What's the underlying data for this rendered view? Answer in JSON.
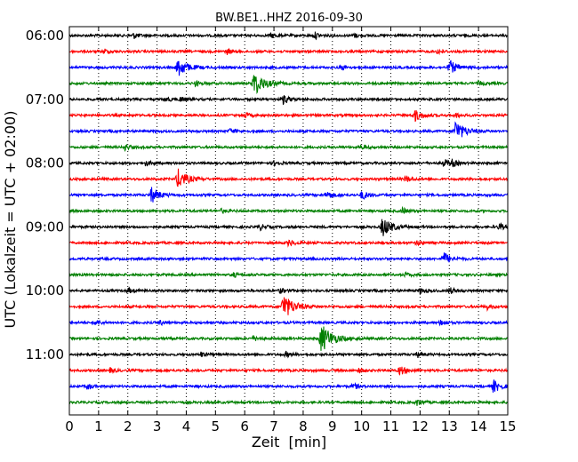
{
  "chart_data": {
    "type": "line",
    "title": "BW.BE1..HHZ 2016-09-30",
    "xlabel": "Zeit  [min]",
    "ylabel": "UTC (Lokalzeit = UTC + 02:00)",
    "xlim": [
      0,
      15
    ],
    "x_ticks": [
      "0",
      "1",
      "2",
      "3",
      "4",
      "5",
      "6",
      "7",
      "8",
      "9",
      "10",
      "11",
      "12",
      "13",
      "14",
      "15"
    ],
    "y_ticks": [
      {
        "label": "06:00",
        "row": 0
      },
      {
        "label": "07:00",
        "row": 4
      },
      {
        "label": "08:00",
        "row": 8
      },
      {
        "label": "09:00",
        "row": 12
      },
      {
        "label": "10:00",
        "row": 16
      },
      {
        "label": "11:00",
        "row": 20
      }
    ],
    "grid": "vertical dotted",
    "colors": [
      "#000000",
      "#ff0000",
      "#0000ff",
      "#008000"
    ],
    "trace_minutes": 15,
    "series": [
      {
        "start": "06:00",
        "events": [
          {
            "t": 2.2,
            "amp": 0.35
          },
          {
            "t": 6.9,
            "amp": 0.3
          },
          {
            "t": 8.4,
            "amp": 0.4
          },
          {
            "t": 9.7,
            "amp": 0.3
          },
          {
            "t": 15.0,
            "amp": 0.35
          }
        ]
      },
      {
        "start": "06:15",
        "events": [
          {
            "t": 1.2,
            "amp": 0.3
          },
          {
            "t": 5.4,
            "amp": 0.3
          },
          {
            "t": 12.6,
            "amp": 0.3
          }
        ]
      },
      {
        "start": "06:30",
        "events": [
          {
            "t": 3.7,
            "amp": 1.3
          },
          {
            "t": 9.3,
            "amp": 0.3
          },
          {
            "t": 13.0,
            "amp": 0.9
          }
        ]
      },
      {
        "start": "06:45",
        "events": [
          {
            "t": 6.3,
            "amp": 1.6
          },
          {
            "t": 4.3,
            "amp": 0.3
          },
          {
            "t": 14.0,
            "amp": 0.25
          }
        ]
      },
      {
        "start": "07:00",
        "events": [
          {
            "t": 3.3,
            "amp": 0.3
          },
          {
            "t": 3.8,
            "amp": 0.3
          },
          {
            "t": 7.3,
            "amp": 0.6
          }
        ]
      },
      {
        "start": "07:15",
        "events": [
          {
            "t": 6.0,
            "amp": 0.3
          },
          {
            "t": 11.8,
            "amp": 0.8
          },
          {
            "t": 13.2,
            "amp": 0.3
          }
        ]
      },
      {
        "start": "07:30",
        "events": [
          {
            "t": 5.5,
            "amp": 0.3
          },
          {
            "t": 13.2,
            "amp": 1.4
          }
        ]
      },
      {
        "start": "07:45",
        "events": [
          {
            "t": 1.9,
            "amp": 0.4
          },
          {
            "t": 10.0,
            "amp": 0.3
          }
        ]
      },
      {
        "start": "08:00",
        "events": [
          {
            "t": 2.6,
            "amp": 0.3
          },
          {
            "t": 7.0,
            "amp": 0.3
          },
          {
            "t": 12.8,
            "amp": 0.5
          },
          {
            "t": 13.1,
            "amp": 0.35
          }
        ]
      },
      {
        "start": "08:15",
        "events": [
          {
            "t": 3.7,
            "amp": 1.3
          },
          {
            "t": 11.5,
            "amp": 0.4
          }
        ]
      },
      {
        "start": "08:30",
        "events": [
          {
            "t": 2.8,
            "amp": 1.0
          },
          {
            "t": 8.8,
            "amp": 0.5
          },
          {
            "t": 10.0,
            "amp": 0.6
          }
        ]
      },
      {
        "start": "08:45",
        "events": [
          {
            "t": 5.2,
            "amp": 0.25
          },
          {
            "t": 11.4,
            "amp": 0.35
          }
        ]
      },
      {
        "start": "09:00",
        "events": [
          {
            "t": 6.5,
            "amp": 0.4
          },
          {
            "t": 10.7,
            "amp": 1.3
          },
          {
            "t": 14.7,
            "amp": 0.4
          }
        ]
      },
      {
        "start": "09:15",
        "events": [
          {
            "t": 7.5,
            "amp": 0.4
          },
          {
            "t": 11.9,
            "amp": 0.3
          }
        ]
      },
      {
        "start": "09:30",
        "events": [
          {
            "t": 12.8,
            "amp": 0.8
          }
        ]
      },
      {
        "start": "09:45",
        "events": [
          {
            "t": 5.6,
            "amp": 0.3
          },
          {
            "t": 11.5,
            "amp": 0.25
          }
        ]
      },
      {
        "start": "10:00",
        "events": [
          {
            "t": 2.0,
            "amp": 0.3
          },
          {
            "t": 7.2,
            "amp": 0.3
          },
          {
            "t": 12.0,
            "amp": 0.4
          },
          {
            "t": 13.0,
            "amp": 0.4
          }
        ]
      },
      {
        "start": "10:15",
        "events": [
          {
            "t": 7.3,
            "amp": 1.7
          },
          {
            "t": 14.3,
            "amp": 0.3
          }
        ]
      },
      {
        "start": "10:30",
        "events": [
          {
            "t": 0.9,
            "amp": 0.35
          },
          {
            "t": 3.1,
            "amp": 0.3
          },
          {
            "t": 12.7,
            "amp": 0.4
          }
        ]
      },
      {
        "start": "10:45",
        "events": [
          {
            "t": 8.6,
            "amp": 1.9
          },
          {
            "t": 6.3,
            "amp": 0.3
          }
        ]
      },
      {
        "start": "11:00",
        "events": [
          {
            "t": 4.5,
            "amp": 0.3
          },
          {
            "t": 7.4,
            "amp": 0.3
          },
          {
            "t": 11.9,
            "amp": 0.35
          }
        ]
      },
      {
        "start": "11:15",
        "events": [
          {
            "t": 1.4,
            "amp": 0.3
          },
          {
            "t": 11.3,
            "amp": 0.6
          },
          {
            "t": 9.9,
            "amp": 0.3
          }
        ]
      },
      {
        "start": "11:30",
        "events": [
          {
            "t": 0.6,
            "amp": 0.35
          },
          {
            "t": 9.7,
            "amp": 0.4
          },
          {
            "t": 14.5,
            "amp": 0.8
          }
        ]
      },
      {
        "start": "11:45",
        "events": [
          {
            "t": 11.9,
            "amp": 0.4
          }
        ]
      }
    ]
  }
}
